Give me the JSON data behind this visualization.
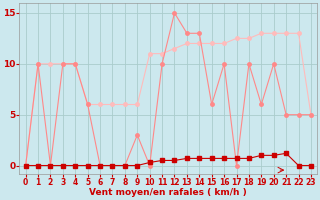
{
  "xlabel": "Vent moyen/en rafales ( km/h )",
  "background_color": "#cce8ee",
  "grid_color": "#aacccc",
  "xlim": [
    -0.5,
    23.5
  ],
  "ylim": [
    -0.8,
    16
  ],
  "x_ticks": [
    0,
    1,
    2,
    3,
    4,
    5,
    6,
    7,
    8,
    9,
    10,
    11,
    12,
    13,
    14,
    15,
    16,
    17,
    18,
    19,
    20,
    21,
    22,
    23
  ],
  "yticks": [
    0,
    5,
    10,
    15
  ],
  "series1_x": [
    0,
    1,
    2,
    3,
    4,
    5,
    6,
    7,
    8,
    9,
    10,
    11,
    12,
    13,
    14,
    15,
    16,
    17,
    18,
    19,
    20,
    21,
    22,
    23
  ],
  "series1_y": [
    0,
    10,
    0,
    10,
    10,
    6,
    0,
    0,
    0,
    3,
    0,
    10,
    15,
    13,
    13,
    6,
    10,
    0,
    10,
    6,
    10,
    5,
    5,
    5
  ],
  "series1_color": "#ff8888",
  "series2_x": [
    0,
    1,
    2,
    3,
    4,
    5,
    6,
    7,
    8,
    9,
    10,
    11,
    12,
    13,
    14,
    15,
    16,
    17,
    18,
    19,
    20,
    21,
    22,
    23
  ],
  "series2_y": [
    0,
    0,
    0,
    0,
    0,
    0,
    0,
    0,
    0,
    0,
    0.3,
    0.5,
    0.5,
    0.7,
    0.7,
    0.7,
    0.7,
    0.7,
    0.7,
    1.0,
    1.0,
    1.2,
    0,
    0
  ],
  "series2_color": "#cc0000",
  "series3_x": [
    0,
    1,
    2,
    3,
    4,
    5,
    6,
    7,
    8,
    9,
    10,
    11,
    12,
    13,
    14,
    15,
    16,
    17,
    18,
    19,
    20,
    21,
    22,
    23
  ],
  "series3_y": [
    0,
    10,
    10,
    10,
    10,
    6,
    6,
    6,
    6,
    6,
    11,
    11,
    11.5,
    12,
    12,
    12,
    12,
    12.5,
    12.5,
    13,
    13,
    13,
    13,
    5
  ],
  "series3_color": "#ffbbbb",
  "marker_size": 2.5,
  "linewidth": 0.8,
  "tick_fontsize_x": 5.5,
  "tick_fontsize_y": 6.5,
  "xlabel_fontsize": 6.5
}
